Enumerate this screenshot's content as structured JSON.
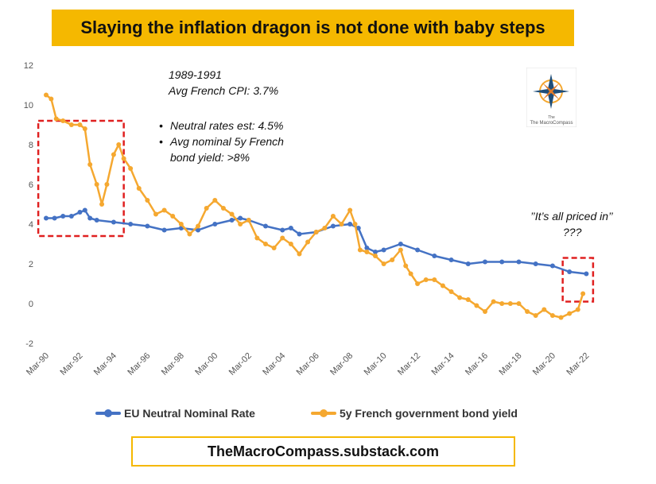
{
  "header": {
    "title": "Slaying the inflation dragon is not done with baby steps"
  },
  "annotations": {
    "period": "1989-1991",
    "cpi": "Avg French CPI: 3.7%",
    "bullets": [
      "Neutral rates est: 4.5%",
      "Avg nominal 5y French",
      "bond yield: >8%"
    ],
    "priced_in": "’’It’s all priced in’’",
    "question": "???"
  },
  "logo": {
    "text": "The MacroCompass",
    "icon": "compass-rose-icon"
  },
  "footer": {
    "text": "TheMacroCompass.substack.com"
  },
  "colors": {
    "blue": "#4472c4",
    "orange": "#f5a830",
    "accent": "#f5b800",
    "box": "#e02020"
  },
  "chart_data": {
    "type": "line",
    "ylim": [
      -2,
      12
    ],
    "yticks": [
      -2,
      0,
      2,
      4,
      6,
      8,
      10,
      12
    ],
    "xlim": [
      1990.0,
      2022.5
    ],
    "x_tick_labels": [
      "Mar-90",
      "Mar-92",
      "Mar-94",
      "Mar-96",
      "Mar-98",
      "Mar-00",
      "Mar-02",
      "Mar-04",
      "Mar-06",
      "Mar-08",
      "Mar-10",
      "Mar-12",
      "Mar-14",
      "Mar-16",
      "Mar-18",
      "Mar-20",
      "Mar-22"
    ],
    "series": [
      {
        "name": "EU Neutral Nominal Rate",
        "color": "#4472c4",
        "points": [
          [
            1990.0,
            4.3
          ],
          [
            1990.5,
            4.3
          ],
          [
            1991.0,
            4.4
          ],
          [
            1991.5,
            4.4
          ],
          [
            1992.0,
            4.6
          ],
          [
            1992.3,
            4.7
          ],
          [
            1992.6,
            4.3
          ],
          [
            1993.0,
            4.2
          ],
          [
            1994.0,
            4.1
          ],
          [
            1995.0,
            4.0
          ],
          [
            1996.0,
            3.9
          ],
          [
            1997.0,
            3.7
          ],
          [
            1998.0,
            3.8
          ],
          [
            1999.0,
            3.7
          ],
          [
            2000.0,
            4.0
          ],
          [
            2001.0,
            4.2
          ],
          [
            2001.5,
            4.3
          ],
          [
            2002.0,
            4.2
          ],
          [
            2003.0,
            3.9
          ],
          [
            2004.0,
            3.7
          ],
          [
            2004.5,
            3.8
          ],
          [
            2005.0,
            3.5
          ],
          [
            2006.0,
            3.6
          ],
          [
            2007.0,
            3.9
          ],
          [
            2008.0,
            4.0
          ],
          [
            2008.5,
            3.8
          ],
          [
            2009.0,
            2.8
          ],
          [
            2009.5,
            2.6
          ],
          [
            2010.0,
            2.7
          ],
          [
            2011.0,
            3.0
          ],
          [
            2012.0,
            2.7
          ],
          [
            2013.0,
            2.4
          ],
          [
            2014.0,
            2.2
          ],
          [
            2015.0,
            2.0
          ],
          [
            2016.0,
            2.1
          ],
          [
            2017.0,
            2.1
          ],
          [
            2018.0,
            2.1
          ],
          [
            2019.0,
            2.0
          ],
          [
            2020.0,
            1.9
          ],
          [
            2021.0,
            1.6
          ],
          [
            2022.0,
            1.5
          ]
        ]
      },
      {
        "name": "5y French government bond yield",
        "color": "#f5a830",
        "points": [
          [
            1990.0,
            10.5
          ],
          [
            1990.3,
            10.3
          ],
          [
            1990.6,
            9.3
          ],
          [
            1991.0,
            9.2
          ],
          [
            1991.5,
            9.0
          ],
          [
            1992.0,
            9.0
          ],
          [
            1992.3,
            8.8
          ],
          [
            1992.6,
            7.0
          ],
          [
            1993.0,
            6.0
          ],
          [
            1993.3,
            5.0
          ],
          [
            1993.6,
            6.0
          ],
          [
            1994.0,
            7.5
          ],
          [
            1994.3,
            8.0
          ],
          [
            1994.6,
            7.3
          ],
          [
            1995.0,
            6.8
          ],
          [
            1995.5,
            5.8
          ],
          [
            1996.0,
            5.2
          ],
          [
            1996.5,
            4.5
          ],
          [
            1997.0,
            4.7
          ],
          [
            1997.5,
            4.4
          ],
          [
            1998.0,
            4.0
          ],
          [
            1998.5,
            3.5
          ],
          [
            1999.0,
            3.9
          ],
          [
            1999.5,
            4.8
          ],
          [
            2000.0,
            5.2
          ],
          [
            2000.5,
            4.8
          ],
          [
            2001.0,
            4.5
          ],
          [
            2001.5,
            4.0
          ],
          [
            2002.0,
            4.2
          ],
          [
            2002.5,
            3.3
          ],
          [
            2003.0,
            3.0
          ],
          [
            2003.5,
            2.8
          ],
          [
            2004.0,
            3.3
          ],
          [
            2004.5,
            3.0
          ],
          [
            2005.0,
            2.5
          ],
          [
            2005.5,
            3.1
          ],
          [
            2006.0,
            3.6
          ],
          [
            2006.5,
            3.8
          ],
          [
            2007.0,
            4.4
          ],
          [
            2007.5,
            4.0
          ],
          [
            2008.0,
            4.7
          ],
          [
            2008.3,
            4.0
          ],
          [
            2008.6,
            2.7
          ],
          [
            2009.0,
            2.6
          ],
          [
            2009.5,
            2.4
          ],
          [
            2010.0,
            2.0
          ],
          [
            2010.5,
            2.2
          ],
          [
            2011.0,
            2.7
          ],
          [
            2011.3,
            1.9
          ],
          [
            2011.6,
            1.5
          ],
          [
            2012.0,
            1.0
          ],
          [
            2012.5,
            1.2
          ],
          [
            2013.0,
            1.2
          ],
          [
            2013.5,
            0.9
          ],
          [
            2014.0,
            0.6
          ],
          [
            2014.5,
            0.3
          ],
          [
            2015.0,
            0.2
          ],
          [
            2015.5,
            -0.1
          ],
          [
            2016.0,
            -0.4
          ],
          [
            2016.5,
            0.1
          ],
          [
            2017.0,
            0.0
          ],
          [
            2017.5,
            0.0
          ],
          [
            2018.0,
            0.0
          ],
          [
            2018.5,
            -0.4
          ],
          [
            2019.0,
            -0.6
          ],
          [
            2019.5,
            -0.3
          ],
          [
            2020.0,
            -0.6
          ],
          [
            2020.5,
            -0.7
          ],
          [
            2021.0,
            -0.5
          ],
          [
            2021.5,
            -0.3
          ],
          [
            2021.8,
            0.5
          ]
        ]
      }
    ]
  }
}
